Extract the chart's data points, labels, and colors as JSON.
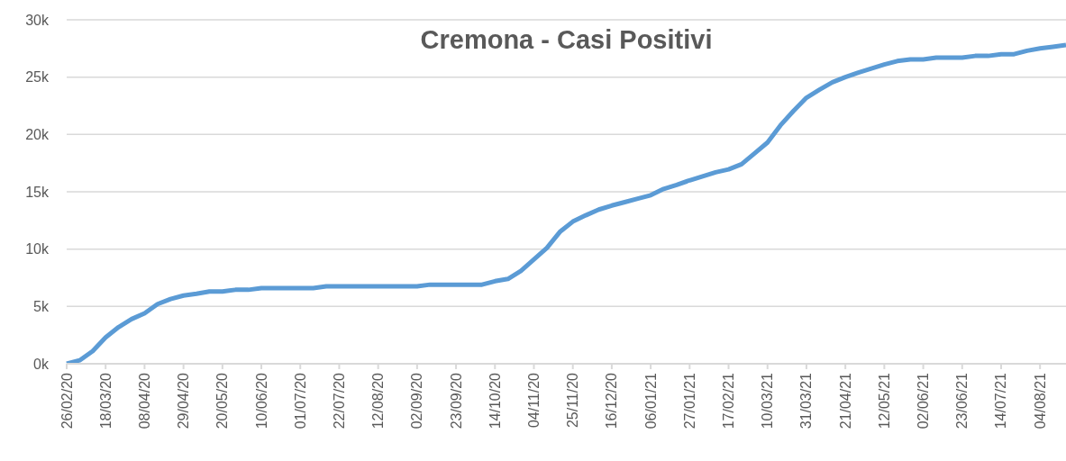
{
  "chart_data": {
    "type": "line",
    "title": "Cremona - Casi Positivi",
    "categories": [
      "26/02/20",
      null,
      null,
      "18/03/20",
      null,
      null,
      "08/04/20",
      null,
      null,
      "29/04/20",
      null,
      null,
      "20/05/20",
      null,
      null,
      "10/06/20",
      null,
      null,
      "01/07/20",
      null,
      null,
      "22/07/20",
      null,
      null,
      "12/08/20",
      null,
      null,
      "02/09/20",
      null,
      null,
      "23/09/20",
      null,
      null,
      "14/10/20",
      null,
      null,
      "04/11/20",
      null,
      null,
      "25/11/20",
      null,
      null,
      "16/12/20",
      null,
      null,
      "06/01/21",
      null,
      null,
      "27/01/21",
      null,
      null,
      "17/02/21",
      null,
      null,
      "10/03/21",
      null,
      null,
      "31/03/21",
      null,
      null,
      "21/04/21",
      null,
      null,
      "12/05/21",
      null,
      null,
      "02/06/21",
      null,
      null,
      "23/06/21",
      null,
      null,
      "14/07/21",
      null,
      null,
      "04/08/21",
      null,
      null
    ],
    "series": [
      {
        "color": "#5b9bd5",
        "values": [
          0,
          300,
          1100,
          2300,
          3200,
          3900,
          4400,
          5200,
          5650,
          5950,
          6100,
          6300,
          6300,
          6450,
          6450,
          6600,
          6600,
          6600,
          6600,
          6600,
          6750,
          6750,
          6750,
          6750,
          6750,
          6750,
          6750,
          6750,
          6900,
          6900,
          6900,
          6900,
          6900,
          7200,
          7400,
          8100,
          9100,
          10100,
          11500,
          12400,
          12950,
          13450,
          13800,
          14100,
          14400,
          14700,
          15250,
          15600,
          16000,
          16350,
          16700,
          16950,
          17400,
          18350,
          19300,
          20800,
          22050,
          23200,
          23900,
          24550,
          25000,
          25400,
          25750,
          26100,
          26400,
          26550,
          26550,
          26700,
          26700,
          26700,
          26850,
          26850,
          27000,
          27000,
          27300,
          27500,
          27650,
          27800
        ]
      }
    ],
    "ylim": [
      0,
      30000
    ],
    "yticks": [
      {
        "value": 0,
        "label": "0k"
      },
      {
        "value": 5000,
        "label": "5k"
      },
      {
        "value": 10000,
        "label": "10k"
      },
      {
        "value": 15000,
        "label": "15k"
      },
      {
        "value": 20000,
        "label": "20k"
      },
      {
        "value": 25000,
        "label": "25k"
      },
      {
        "value": 30000,
        "label": "30k"
      }
    ],
    "grid": "y",
    "legend": false
  }
}
